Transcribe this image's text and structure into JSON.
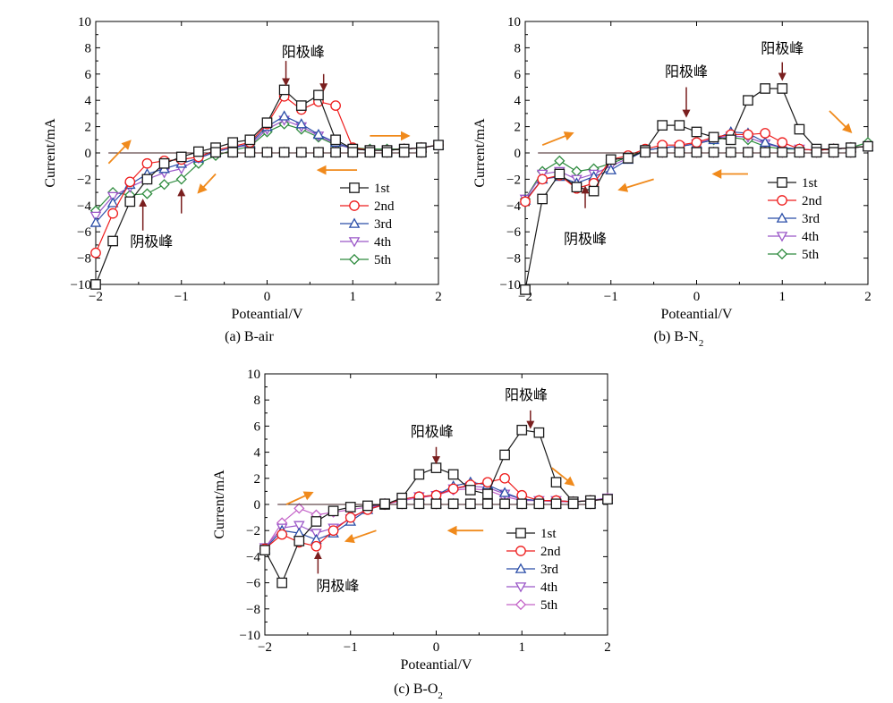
{
  "colors": {
    "1st": "#1a1a1a",
    "2nd": "#ee1c1c",
    "3rd": "#2b4ea8",
    "4th": "#9b58c8",
    "5th": "#2e8b3e",
    "5th_c": "#c464c8",
    "arrow_orange": "#f08a1c",
    "arrow_dark": "#7a1f1f"
  },
  "chart_data": [
    {
      "type": "line",
      "caption": "(a) B-air",
      "xlabel": "Poteantial/V",
      "ylabel": "Current/mA",
      "xlim": [
        -2,
        2
      ],
      "ylim": [
        -10,
        10
      ],
      "xticks": [
        "−2",
        "−1",
        "0",
        "1",
        "2"
      ],
      "yticks": [
        "−10",
        "−8",
        "−6",
        "−4",
        "−2",
        "0",
        "2",
        "4",
        "6",
        "8",
        "10"
      ],
      "legend_position": "lower-right",
      "series": [
        {
          "name": "1st",
          "marker": "square",
          "x": [
            -2,
            -1.8,
            -1.6,
            -1.4,
            -1.2,
            -1.0,
            -0.8,
            -0.6,
            -0.4,
            -0.2,
            0,
            0.2,
            0.4,
            0.6,
            0.8,
            1.0,
            1.2,
            1.4,
            1.6,
            1.8,
            2.0
          ],
          "y": [
            -10,
            -6.7,
            -3.7,
            -2.0,
            -0.8,
            -0.3,
            0.1,
            0.4,
            0.8,
            1.0,
            2.3,
            4.8,
            3.6,
            4.4,
            1.0,
            0.3,
            0.2,
            0.2,
            0.3,
            0.4,
            0.6
          ]
        },
        {
          "name": "2nd",
          "marker": "circle",
          "x": [
            -2,
            -1.8,
            -1.6,
            -1.4,
            -1.2,
            -1.0,
            -0.8,
            -0.6,
            -0.4,
            -0.2,
            0,
            0.2,
            0.4,
            0.6,
            0.8,
            1.0,
            1.2,
            1.4,
            1.6,
            1.8,
            2.0
          ],
          "y": [
            -7.6,
            -4.6,
            -2.2,
            -0.8,
            -0.6,
            -0.5,
            -0.3,
            0.2,
            0.5,
            0.8,
            2.2,
            4.3,
            3.3,
            3.9,
            3.6,
            0.4,
            0.2,
            0.2,
            0.3,
            0.4,
            0.6
          ]
        },
        {
          "name": "3rd",
          "marker": "triangle-up",
          "x": [
            -2,
            -1.8,
            -1.6,
            -1.4,
            -1.2,
            -1.0,
            -0.8,
            -0.6,
            -0.4,
            -0.2,
            0,
            0.2,
            0.4,
            0.6,
            0.8,
            1.0,
            1.2,
            1.4,
            1.6,
            1.8,
            2.0
          ],
          "y": [
            -5.3,
            -3.8,
            -2.4,
            -1.6,
            -1.2,
            -0.8,
            -0.4,
            0.1,
            0.4,
            0.7,
            2.0,
            2.8,
            2.2,
            1.4,
            0.8,
            0.3,
            0.2,
            0.2,
            0.3,
            0.4,
            0.6
          ]
        },
        {
          "name": "4th",
          "marker": "triangle-down",
          "x": [
            -2,
            -1.8,
            -1.6,
            -1.4,
            -1.2,
            -1.0,
            -0.8,
            -0.6,
            -0.4,
            -0.2,
            0,
            0.2,
            0.4,
            0.6,
            0.8,
            1.0,
            1.2,
            1.4,
            1.6,
            1.8,
            2.0
          ],
          "y": [
            -4.8,
            -3.3,
            -2.6,
            -2.0,
            -1.5,
            -1.2,
            -0.4,
            0.1,
            0.4,
            0.6,
            1.8,
            2.5,
            2.0,
            1.3,
            0.7,
            0.3,
            0.2,
            0.2,
            0.3,
            0.4,
            0.6
          ]
        },
        {
          "name": "5th",
          "marker": "diamond",
          "x": [
            -2,
            -1.8,
            -1.6,
            -1.4,
            -1.2,
            -1.0,
            -0.8,
            -0.6,
            -0.4,
            -0.2,
            0,
            0.2,
            0.4,
            0.6,
            0.8,
            1.0,
            1.2,
            1.4,
            1.6,
            1.8,
            2.0
          ],
          "y": [
            -4.4,
            -3.0,
            -3.2,
            -3.1,
            -2.4,
            -2.0,
            -0.8,
            -0.2,
            0.2,
            0.5,
            1.6,
            2.2,
            1.8,
            1.2,
            0.6,
            0.4,
            0.3,
            0.3,
            0.3,
            0.4,
            0.6
          ]
        }
      ],
      "annotations": [
        {
          "text": "阳极峰",
          "x": 0.42,
          "y": 7.3
        },
        {
          "text": "阴极峰",
          "x": -1.35,
          "y": -7.1
        }
      ],
      "peak_arrows": [
        {
          "x": 0.22,
          "y_from": 7.0,
          "y_to": 5.2
        },
        {
          "x": 0.66,
          "y_from": 6.0,
          "y_to": 4.8
        },
        {
          "x": -1.45,
          "y_from": -5.9,
          "y_to": -3.6
        },
        {
          "x": -1.0,
          "y_from": -4.6,
          "y_to": -2.8
        }
      ],
      "scan_arrows": [
        {
          "x1": 1.2,
          "y1": 1.3,
          "x2": 1.65,
          "y2": 1.3
        },
        {
          "x1": 1.05,
          "y1": -1.3,
          "x2": 0.6,
          "y2": -1.3
        },
        {
          "x1": -1.85,
          "y1": -0.8,
          "x2": -1.6,
          "y2": 0.9
        },
        {
          "x1": -0.6,
          "y1": -1.6,
          "x2": -0.8,
          "y2": -3.0
        }
      ]
    },
    {
      "type": "line",
      "caption": "(b) B-N",
      "caption_sub": "2",
      "xlabel": "Poteantial/V",
      "ylabel": "Current/mA",
      "xlim": [
        -2,
        2
      ],
      "ylim": [
        -10,
        10
      ],
      "xticks": [
        "−2",
        "−1",
        "0",
        "1",
        "2"
      ],
      "yticks": [
        "−10",
        "−8",
        "−6",
        "−4",
        "−2",
        "0",
        "2",
        "4",
        "6",
        "8",
        "10"
      ],
      "legend_position": "lower-right",
      "series": [
        {
          "name": "1st",
          "marker": "square",
          "x": [
            -2,
            -1.8,
            -1.6,
            -1.4,
            -1.2,
            -1.0,
            -0.8,
            -0.6,
            -0.4,
            -0.2,
            0,
            0.2,
            0.4,
            0.6,
            0.8,
            1.0,
            1.2,
            1.4,
            1.6,
            1.8,
            2.0
          ],
          "y": [
            -10.4,
            -3.5,
            -1.6,
            -2.6,
            -2.9,
            -0.5,
            -0.4,
            0.2,
            2.1,
            2.1,
            1.6,
            1.2,
            1.0,
            4.0,
            4.9,
            4.9,
            1.8,
            0.3,
            0.3,
            0.4,
            0.5
          ]
        },
        {
          "name": "2nd",
          "marker": "circle",
          "x": [
            -2,
            -1.8,
            -1.6,
            -1.4,
            -1.2,
            -1.0,
            -0.8,
            -0.6,
            -0.4,
            -0.2,
            0,
            0.2,
            0.4,
            0.6,
            0.8,
            1.0,
            1.2,
            1.4,
            1.6,
            1.8,
            2.0
          ],
          "y": [
            -3.7,
            -2.0,
            -1.7,
            -2.7,
            -2.3,
            -0.5,
            -0.2,
            0.3,
            0.6,
            0.6,
            0.8,
            1.2,
            1.4,
            1.4,
            1.5,
            0.8,
            0.3,
            0.2,
            0.3,
            0.4,
            0.5
          ]
        },
        {
          "name": "3rd",
          "marker": "triangle-up",
          "x": [
            -2,
            -1.8,
            -1.6,
            -1.4,
            -1.2,
            -1.0,
            -0.8,
            -0.6,
            -0.4,
            -0.2,
            0,
            0.2,
            0.4,
            0.6,
            0.8,
            1.0,
            1.2,
            1.4,
            1.6,
            1.8,
            2.0
          ],
          "y": [
            -3.6,
            -2.0,
            -1.8,
            -2.3,
            -1.8,
            -1.3,
            -0.5,
            0.2,
            0.4,
            0.5,
            0.7,
            1.0,
            1.6,
            1.5,
            0.8,
            0.4,
            0.3,
            0.2,
            0.3,
            0.4,
            0.5
          ]
        },
        {
          "name": "4th",
          "marker": "triangle-down",
          "x": [
            -2,
            -1.8,
            -1.6,
            -1.4,
            -1.2,
            -1.0,
            -0.8,
            -0.6,
            -0.4,
            -0.2,
            0,
            0.2,
            0.4,
            0.6,
            0.8,
            1.0,
            1.2,
            1.4,
            1.6,
            1.8,
            2.0
          ],
          "y": [
            -3.5,
            -1.6,
            -1.4,
            -2.0,
            -1.6,
            -1.0,
            -0.4,
            0.2,
            0.4,
            0.5,
            0.7,
            1.1,
            1.3,
            1.2,
            0.7,
            0.4,
            0.3,
            0.2,
            0.3,
            0.4,
            0.5
          ]
        },
        {
          "name": "5th",
          "marker": "diamond",
          "x": [
            -2,
            -1.8,
            -1.6,
            -1.4,
            -1.2,
            -1.0,
            -0.8,
            -0.6,
            -0.4,
            -0.2,
            0,
            0.2,
            0.4,
            0.6,
            0.8,
            1.0,
            1.2,
            1.4,
            1.6,
            1.8,
            2.0
          ],
          "y": [
            -3.5,
            -1.4,
            -0.6,
            -1.4,
            -1.2,
            -0.8,
            -0.3,
            0.2,
            0.4,
            0.5,
            0.7,
            1.0,
            1.2,
            1.0,
            0.5,
            0.3,
            0.3,
            0.2,
            0.3,
            0.4,
            0.8
          ]
        }
      ],
      "annotations": [
        {
          "text": "阳极峰",
          "x": -0.12,
          "y": 5.8
        },
        {
          "text": "阳极峰",
          "x": 1.0,
          "y": 7.6
        },
        {
          "text": "阴极峰",
          "x": -1.3,
          "y": -6.9
        }
      ],
      "peak_arrows": [
        {
          "x": -0.12,
          "y_from": 5.0,
          "y_to": 2.8
        },
        {
          "x": 1.0,
          "y_from": 6.9,
          "y_to": 5.6
        },
        {
          "x": -1.3,
          "y_from": -4.2,
          "y_to": -2.6
        }
      ],
      "scan_arrows": [
        {
          "x1": 1.55,
          "y1": 3.2,
          "x2": 1.8,
          "y2": 1.6
        },
        {
          "x1": 0.6,
          "y1": -1.6,
          "x2": 0.2,
          "y2": -1.6
        },
        {
          "x1": -1.8,
          "y1": 0.6,
          "x2": -1.45,
          "y2": 1.5
        },
        {
          "x1": -0.5,
          "y1": -2.0,
          "x2": -0.9,
          "y2": -2.8
        }
      ]
    },
    {
      "type": "line",
      "caption": "(c) B-O",
      "caption_sub": "2",
      "xlabel": "Poteantial/V",
      "ylabel": "Current/mA",
      "xlim": [
        -2,
        2
      ],
      "ylim": [
        -10,
        10
      ],
      "xticks": [
        "−2",
        "−1",
        "0",
        "1",
        "2"
      ],
      "yticks": [
        "−10",
        "−8",
        "−6",
        "−4",
        "−2",
        "0",
        "2",
        "4",
        "6",
        "8",
        "10"
      ],
      "legend_position": "lower-right",
      "series": [
        {
          "name": "1st",
          "marker": "square",
          "x": [
            -2,
            -1.8,
            -1.6,
            -1.4,
            -1.2,
            -1.0,
            -0.8,
            -0.6,
            -0.4,
            -0.2,
            0,
            0.2,
            0.4,
            0.6,
            0.8,
            1.0,
            1.2,
            1.4,
            1.6,
            1.8,
            2.0
          ],
          "y": [
            -3.5,
            -6.0,
            -2.8,
            -1.3,
            -0.5,
            -0.2,
            -0.1,
            0.0,
            0.5,
            2.3,
            2.8,
            2.3,
            1.1,
            0.8,
            3.8,
            5.7,
            5.5,
            1.7,
            0.2,
            0.3,
            0.4
          ]
        },
        {
          "name": "2nd",
          "marker": "circle",
          "x": [
            -2,
            -1.8,
            -1.6,
            -1.4,
            -1.2,
            -1.0,
            -0.8,
            -0.6,
            -0.4,
            -0.2,
            0,
            0.2,
            0.4,
            0.6,
            0.8,
            1.0,
            1.2,
            1.4,
            1.6,
            1.8,
            2.0
          ],
          "y": [
            -3.4,
            -2.3,
            -2.9,
            -3.2,
            -2.0,
            -1.0,
            -0.4,
            0.0,
            0.4,
            0.6,
            0.7,
            1.2,
            1.5,
            1.7,
            2.0,
            0.7,
            0.3,
            0.3,
            0.2,
            0.3,
            0.4
          ]
        },
        {
          "name": "3rd",
          "marker": "triangle-up",
          "x": [
            -2,
            -1.8,
            -1.6,
            -1.4,
            -1.2,
            -1.0,
            -0.8,
            -0.6,
            -0.4,
            -0.2,
            0,
            0.2,
            0.4,
            0.6,
            0.8,
            1.0,
            1.2,
            1.4,
            1.6,
            1.8,
            2.0
          ],
          "y": [
            -3.4,
            -2.0,
            -2.2,
            -2.7,
            -2.2,
            -1.3,
            -0.4,
            0.0,
            0.4,
            0.6,
            0.7,
            1.4,
            1.7,
            1.5,
            0.9,
            0.4,
            0.3,
            0.3,
            0.2,
            0.3,
            0.4
          ]
        },
        {
          "name": "4th",
          "marker": "triangle-down",
          "x": [
            -2,
            -1.8,
            -1.6,
            -1.4,
            -1.2,
            -1.0,
            -0.8,
            -0.6,
            -0.4,
            -0.2,
            0,
            0.2,
            0.4,
            0.6,
            0.8,
            1.0,
            1.2,
            1.4,
            1.6,
            1.8,
            2.0
          ],
          "y": [
            -3.3,
            -1.8,
            -1.6,
            -2.2,
            -1.8,
            -1.1,
            -0.3,
            0.0,
            0.4,
            0.6,
            0.7,
            1.2,
            1.4,
            1.3,
            0.8,
            0.4,
            0.3,
            0.3,
            0.2,
            0.3,
            0.5
          ]
        },
        {
          "name": "5th",
          "marker": "diamond",
          "x": [
            -2,
            -1.8,
            -1.6,
            -1.4,
            -1.2,
            -1.0,
            -0.8,
            -0.6,
            -0.4,
            -0.2,
            0,
            0.2,
            0.4,
            0.6,
            0.8,
            1.0,
            1.2,
            1.4,
            1.6,
            1.8,
            2.0
          ],
          "y": [
            -3.4,
            -1.4,
            -0.3,
            -0.8,
            -0.6,
            -0.4,
            -0.2,
            0.0,
            0.3,
            0.5,
            0.7,
            1.1,
            1.2,
            1.1,
            0.6,
            0.3,
            0.3,
            0.2,
            0.2,
            0.3,
            0.5
          ]
        }
      ],
      "annotations": [
        {
          "text": "阳极峰",
          "x": -0.05,
          "y": 5.2
        },
        {
          "text": "阳极峰",
          "x": 1.05,
          "y": 8.0
        },
        {
          "text": "阴极峰",
          "x": -1.15,
          "y": -6.6
        }
      ],
      "peak_arrows": [
        {
          "x": 0.0,
          "y_from": 4.4,
          "y_to": 3.2
        },
        {
          "x": 1.1,
          "y_from": 7.2,
          "y_to": 5.9
        },
        {
          "x": -1.38,
          "y_from": -5.3,
          "y_to": -3.7
        }
      ],
      "scan_arrows": [
        {
          "x1": 1.35,
          "y1": 2.8,
          "x2": 1.6,
          "y2": 1.5
        },
        {
          "x1": 0.55,
          "y1": -2.0,
          "x2": 0.15,
          "y2": -2.0
        },
        {
          "x1": -1.75,
          "y1": 0.0,
          "x2": -1.45,
          "y2": 0.9
        },
        {
          "x1": -0.7,
          "y1": -2.0,
          "x2": -1.05,
          "y2": -2.8
        }
      ]
    }
  ]
}
